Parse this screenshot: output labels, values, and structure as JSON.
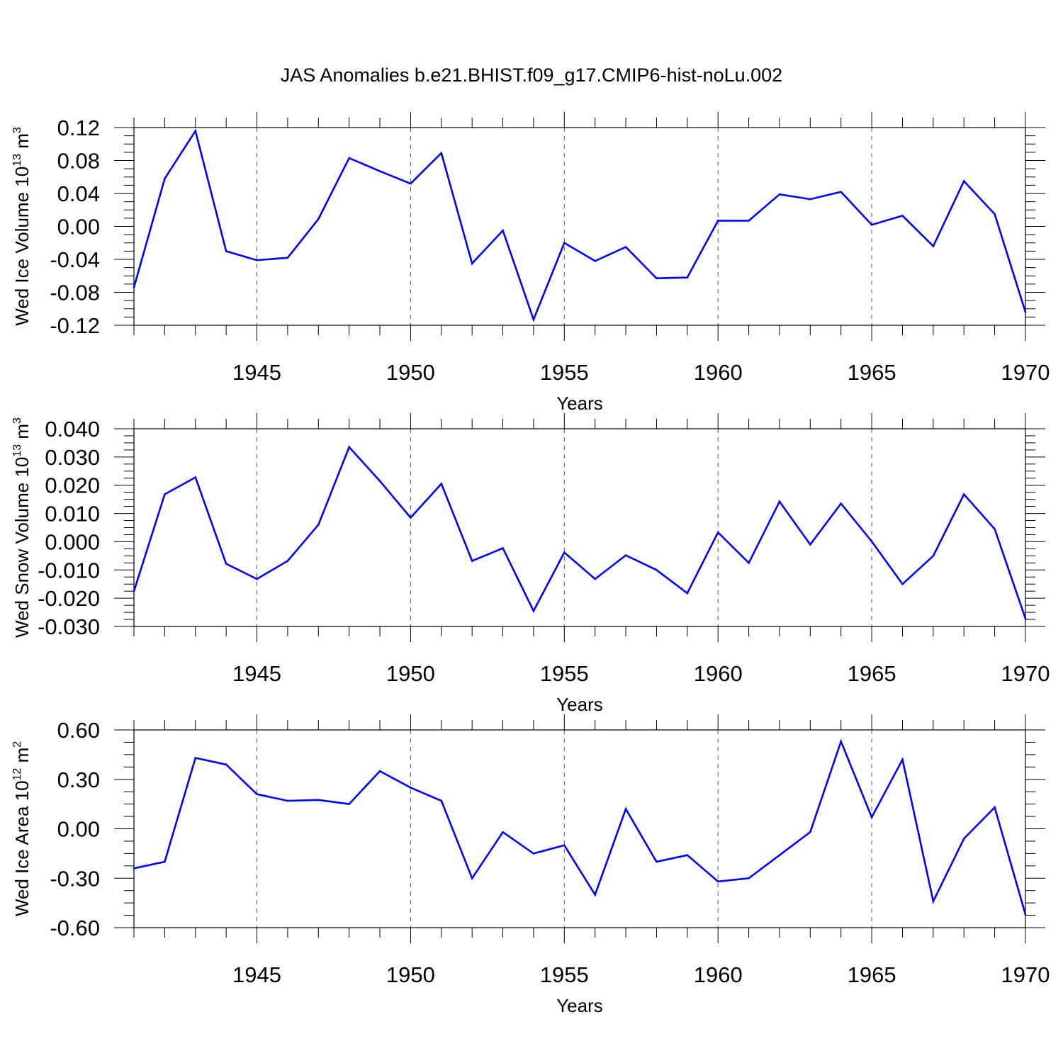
{
  "title": "JAS Anomalies b.e21.BHIST.f09_g17.CMIP6-hist-noLu.002",
  "line_color": "#0000ff",
  "chart_data": [
    {
      "type": "line",
      "ylabel_main": "Wed Ice Volume 10",
      "ylabel_exp": "13",
      "ylabel_unit": " m",
      "ylabel_unit_exp": "3",
      "xlabel": "Years",
      "xlim": [
        1941,
        1970
      ],
      "ylim": [
        -0.12,
        0.12
      ],
      "ytick_values": [
        -0.12,
        -0.08,
        -0.04,
        0.0,
        0.04,
        0.08,
        0.12
      ],
      "ytick_labels": [
        "-0.12",
        "-0.08",
        "-0.04",
        "0.00",
        "0.04",
        "0.08",
        "0.12"
      ],
      "xtick_values": [
        1945,
        1950,
        1955,
        1960,
        1965,
        1970
      ],
      "xtick_labels": [
        "1945",
        "1950",
        "1955",
        "1960",
        "1965",
        "1970"
      ],
      "grid": "vertical dashed at major x ticks",
      "x": [
        1941,
        1942,
        1943,
        1944,
        1945,
        1946,
        1947,
        1948,
        1949,
        1950,
        1951,
        1952,
        1953,
        1954,
        1955,
        1956,
        1957,
        1958,
        1959,
        1960,
        1961,
        1962,
        1963,
        1964,
        1965,
        1966,
        1967,
        1968,
        1969,
        1970
      ],
      "values": [
        -0.074,
        0.058,
        0.116,
        -0.03,
        -0.041,
        -0.038,
        0.009,
        0.083,
        0.067,
        0.052,
        0.089,
        -0.045,
        -0.005,
        -0.113,
        -0.02,
        -0.042,
        -0.025,
        -0.063,
        -0.062,
        0.007,
        0.007,
        0.039,
        0.033,
        0.042,
        0.002,
        0.013,
        -0.024,
        0.055,
        0.015,
        -0.104
      ]
    },
    {
      "type": "line",
      "ylabel_main": "Wed Snow Volume 10",
      "ylabel_exp": "13",
      "ylabel_unit": " m",
      "ylabel_unit_exp": "3",
      "xlabel": "Years",
      "xlim": [
        1941,
        1970
      ],
      "ylim": [
        -0.03,
        0.04
      ],
      "ytick_values": [
        -0.03,
        -0.02,
        -0.01,
        0.0,
        0.01,
        0.02,
        0.03,
        0.04
      ],
      "ytick_labels": [
        "-0.030",
        "-0.020",
        "-0.010",
        "0.000",
        "0.010",
        "0.020",
        "0.030",
        "0.040"
      ],
      "xtick_values": [
        1945,
        1950,
        1955,
        1960,
        1965,
        1970
      ],
      "xtick_labels": [
        "1945",
        "1950",
        "1955",
        "1960",
        "1965",
        "1970"
      ],
      "grid": "vertical dashed at major x ticks",
      "x": [
        1941,
        1942,
        1943,
        1944,
        1945,
        1946,
        1947,
        1948,
        1949,
        1950,
        1951,
        1952,
        1953,
        1954,
        1955,
        1956,
        1957,
        1958,
        1959,
        1960,
        1961,
        1962,
        1963,
        1964,
        1965,
        1966,
        1967,
        1968,
        1969,
        1970
      ],
      "values": [
        -0.0175,
        0.0168,
        0.0228,
        -0.0078,
        -0.0132,
        -0.0068,
        0.006,
        0.0335,
        0.0215,
        0.0085,
        0.0205,
        -0.0068,
        -0.0023,
        -0.0245,
        -0.0038,
        -0.0132,
        -0.0048,
        -0.01,
        -0.0182,
        0.0033,
        -0.0075,
        0.0142,
        -0.001,
        0.0135,
        0.0001,
        -0.015,
        -0.005,
        0.0168,
        0.0045,
        -0.0272
      ]
    },
    {
      "type": "line",
      "ylabel_main": "Wed Ice Area 10",
      "ylabel_exp": "12",
      "ylabel_unit": " m",
      "ylabel_unit_exp": "2",
      "xlabel": "Years",
      "xlim": [
        1941,
        1970
      ],
      "ylim": [
        -0.6,
        0.6
      ],
      "ytick_values": [
        -0.6,
        -0.3,
        0.0,
        0.3,
        0.6
      ],
      "ytick_labels": [
        "-0.60",
        "-0.30",
        "0.00",
        "0.30",
        "0.60"
      ],
      "xtick_values": [
        1945,
        1950,
        1955,
        1960,
        1965,
        1970
      ],
      "xtick_labels": [
        "1945",
        "1950",
        "1955",
        "1960",
        "1965",
        "1970"
      ],
      "grid": "vertical dashed at major x ticks",
      "x": [
        1941,
        1942,
        1943,
        1944,
        1945,
        1946,
        1947,
        1948,
        1949,
        1950,
        1951,
        1952,
        1953,
        1954,
        1955,
        1956,
        1957,
        1958,
        1959,
        1960,
        1961,
        1962,
        1963,
        1964,
        1965,
        1966,
        1967,
        1968,
        1969,
        1970
      ],
      "values": [
        -0.24,
        -0.2,
        0.43,
        0.39,
        0.21,
        0.17,
        0.175,
        0.15,
        0.35,
        0.25,
        0.17,
        -0.3,
        -0.02,
        -0.15,
        -0.1,
        -0.4,
        0.12,
        -0.2,
        -0.16,
        -0.32,
        -0.3,
        -0.16,
        -0.02,
        0.53,
        0.07,
        0.42,
        -0.44,
        -0.06,
        0.13,
        -0.52
      ]
    }
  ]
}
